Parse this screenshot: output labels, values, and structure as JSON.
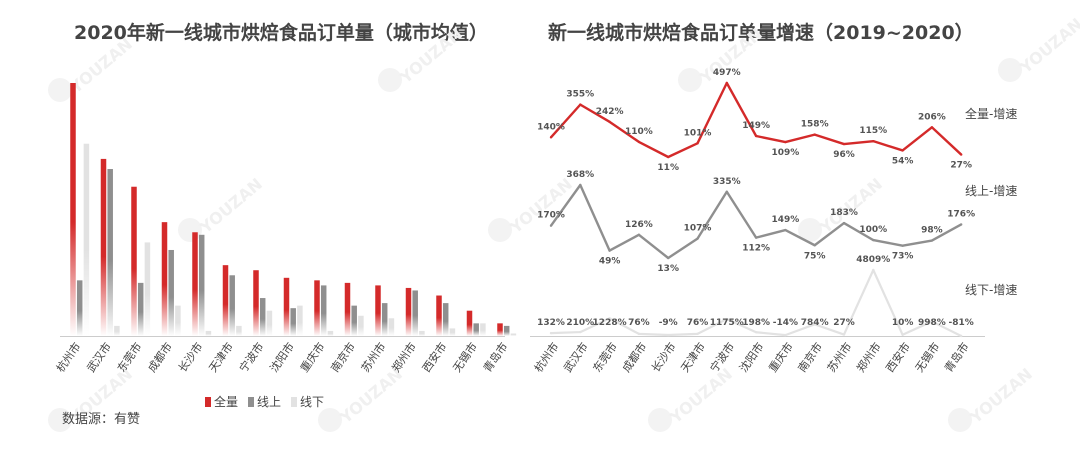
{
  "titles": {
    "left": "2020年新一线城市烘焙食品订单量（城市均值）",
    "right": "新一线城市烘焙食品订单量增速（2019~2020）"
  },
  "source": "数据源：有赞",
  "watermark": "YOUZAN",
  "colors": {
    "total": "#d42a2a",
    "online": "#8f8f8f",
    "offline": "#e2e2e2"
  },
  "chart_data": [
    {
      "type": "bar",
      "title": "2020年新一线城市烘焙食品订单量（城市均值）",
      "categories": [
        "杭州市",
        "武汉市",
        "东莞市",
        "成都市",
        "长沙市",
        "天津市",
        "宁波市",
        "沈阳市",
        "重庆市",
        "南京市",
        "苏州市",
        "郑州市",
        "西安市",
        "无锡市",
        "青岛市"
      ],
      "series": [
        {
          "name": "全量",
          "values": [
            100,
            70,
            59,
            45,
            41,
            28,
            26,
            23,
            22,
            21,
            20,
            19,
            16,
            10,
            5
          ]
        },
        {
          "name": "线上",
          "values": [
            22,
            66,
            21,
            34,
            40,
            24,
            15,
            11,
            20,
            12,
            13,
            18,
            13,
            5,
            4
          ]
        },
        {
          "name": "线下",
          "values": [
            76,
            4,
            37,
            12,
            2,
            4,
            10,
            12,
            2,
            8,
            7,
            2,
            3,
            5,
            1
          ]
        }
      ],
      "ylim": [
        0,
        100
      ],
      "legend": "bottom"
    },
    {
      "type": "line",
      "title": "新一线城市烘焙食品订单量增速（2019~2020）",
      "categories": [
        "杭州市",
        "武汉市",
        "东莞市",
        "成都市",
        "长沙市",
        "天津市",
        "宁波市",
        "沈阳市",
        "重庆市",
        "南京市",
        "苏州市",
        "郑州市",
        "西安市",
        "无锡市",
        "青岛市"
      ],
      "series": [
        {
          "name": "全量-增速",
          "values": [
            140,
            355,
            242,
            110,
            11,
            101,
            497,
            149,
            109,
            158,
            96,
            115,
            54,
            206,
            27
          ],
          "labels": [
            "140%",
            "355%",
            "242%",
            "110%",
            "11%",
            "101%",
            "497%",
            "149%",
            "109%",
            "158%",
            "96%",
            "115%",
            "54%",
            "206%",
            "27%"
          ]
        },
        {
          "name": "线上-增速",
          "values": [
            170,
            368,
            49,
            126,
            13,
            107,
            335,
            112,
            149,
            75,
            183,
            100,
            73,
            98,
            176
          ],
          "labels": [
            "170%",
            "368%",
            "49%",
            "126%",
            "13%",
            "107%",
            "335%",
            "112%",
            "149%",
            "75%",
            "183%",
            "100%",
            "73%",
            "98%",
            "176%"
          ]
        },
        {
          "name": "线下-增速",
          "values": [
            132,
            210,
            1228,
            76,
            -9,
            76,
            1175,
            198,
            -14,
            784,
            27,
            4809,
            10,
            998,
            -81
          ],
          "labels": [
            "132%",
            "210%",
            "1228%",
            "76%",
            "-9%",
            "76%",
            "1175%",
            "198%",
            "-14%",
            "784%",
            "27%",
            "4809%",
            "10%",
            "998%",
            "-81%"
          ]
        }
      ]
    }
  ]
}
